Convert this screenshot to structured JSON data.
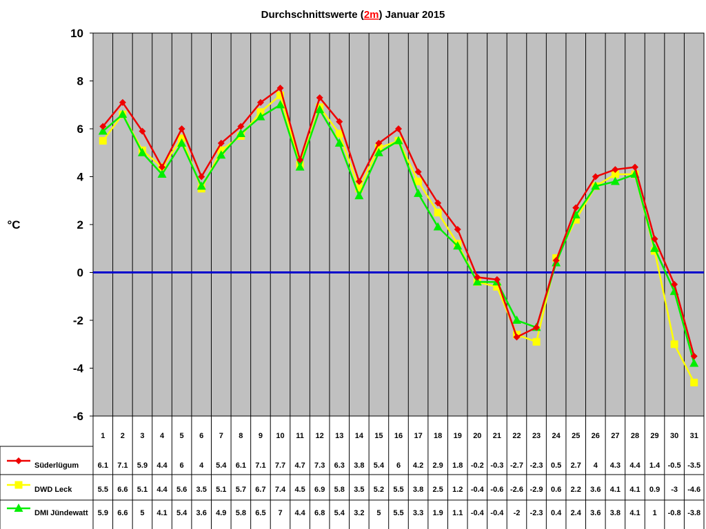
{
  "colors": {
    "plot_bg": "#c0c0c0",
    "gridline": "#000000",
    "zero_line": "#0000cc",
    "title_highlight": "#ff0000"
  },
  "chart_data": {
    "type": "line",
    "title": {
      "prefix": "Durchschnittswerte (",
      "highlight": "2m",
      "suffix": ") Januar 2015"
    },
    "ylabel": "°C",
    "xlabel": "",
    "ylim": [
      -6,
      10
    ],
    "yticks": [
      10,
      8,
      6,
      4,
      2,
      0,
      -2,
      -4,
      -6
    ],
    "grid": true,
    "legend_position": "data-table-left",
    "zero_line": 0,
    "x": [
      1,
      2,
      3,
      4,
      5,
      6,
      7,
      8,
      9,
      10,
      11,
      12,
      13,
      14,
      15,
      16,
      17,
      18,
      19,
      20,
      21,
      22,
      23,
      24,
      25,
      26,
      27,
      28,
      29,
      30,
      31
    ],
    "series": [
      {
        "name": "Süderlügum",
        "color": "#ee0000",
        "marker": "diamond",
        "values": [
          6.1,
          7.1,
          5.9,
          4.4,
          6,
          4,
          5.4,
          6.1,
          7.1,
          7.7,
          4.7,
          7.3,
          6.3,
          3.8,
          5.4,
          6,
          4.2,
          2.9,
          1.8,
          -0.2,
          -0.3,
          -2.7,
          -2.3,
          0.5,
          2.7,
          4,
          4.3,
          4.4,
          1.4,
          -0.5,
          -3.5
        ]
      },
      {
        "name": "DWD Leck",
        "color": "#ffff00",
        "marker": "square",
        "values": [
          5.5,
          6.6,
          5.1,
          4.4,
          5.6,
          3.5,
          5.1,
          5.7,
          6.7,
          7.4,
          4.5,
          6.9,
          5.8,
          3.5,
          5.2,
          5.5,
          3.8,
          2.5,
          1.2,
          -0.4,
          -0.6,
          -2.6,
          -2.9,
          0.6,
          2.2,
          3.6,
          4.1,
          4.1,
          0.9,
          -3,
          -4.6
        ]
      },
      {
        "name": "DMI Jündewatt",
        "color": "#00ee00",
        "marker": "triangle",
        "values": [
          5.9,
          6.6,
          5,
          4.1,
          5.4,
          3.6,
          4.9,
          5.8,
          6.5,
          7,
          4.4,
          6.8,
          5.4,
          3.2,
          5,
          5.5,
          3.3,
          1.9,
          1.1,
          -0.4,
          -0.4,
          -2,
          -2.3,
          0.4,
          2.4,
          3.6,
          3.8,
          4.1,
          1,
          -0.8,
          -3.8
        ]
      }
    ]
  }
}
